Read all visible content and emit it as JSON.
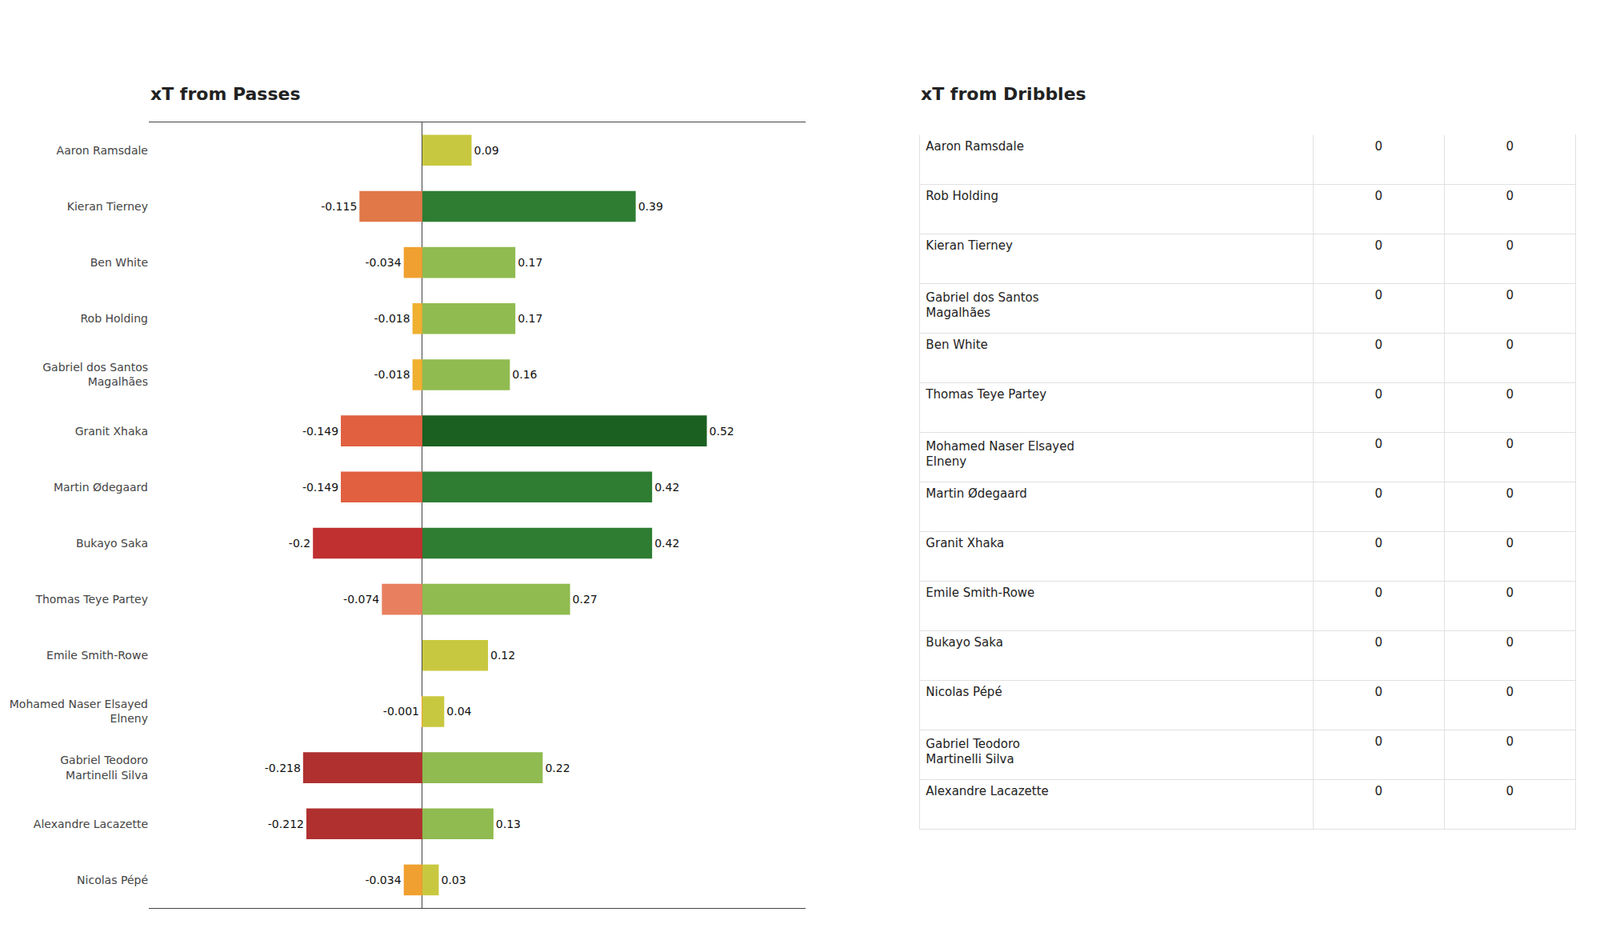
{
  "chart_data": [
    {
      "type": "bar",
      "orientation": "horizontal",
      "title": "xT from Passes",
      "categories": [
        "Aaron Ramsdale",
        "Kieran Tierney",
        "Ben White",
        "Rob Holding",
        "Gabriel dos Santos\nMagalhães",
        "Granit Xhaka",
        "Martin Ødegaard",
        "Bukayo Saka",
        "Thomas Teye Partey",
        "Emile Smith-Rowe",
        "Mohamed Naser Elsayed\nElneny",
        "Gabriel Teodoro\nMartinelli Silva",
        "Alexandre Lacazette",
        "Nicolas Pépé"
      ],
      "series": [
        {
          "values": [
            0,
            -0.115,
            -0.034,
            -0.018,
            -0.018,
            -0.149,
            -0.149,
            -0.2,
            -0.074,
            0,
            -0.001,
            -0.218,
            -0.212,
            -0.034
          ],
          "colors": [
            "#cccc55",
            "#E07848",
            "#F0A030",
            "#F0B030",
            "#F0B030",
            "#E06040",
            "#E06040",
            "#C03030",
            "#E88060",
            "#cccc55",
            "#F0A030",
            "#B03030",
            "#B03030",
            "#F0A030"
          ]
        },
        {
          "values": [
            0.09,
            0.39,
            0.17,
            0.17,
            0.16,
            0.52,
            0.42,
            0.42,
            0.27,
            0.12,
            0.04,
            0.22,
            0.13,
            0.03
          ],
          "colors": [
            "#C8C840",
            "#2E7D32",
            "#90BB50",
            "#90BB50",
            "#90BB50",
            "#1B6020",
            "#2E7D32",
            "#2E7D32",
            "#90BB50",
            "#C8C840",
            "#C8C840",
            "#90BB50",
            "#90BB50",
            "#C8C840"
          ]
        }
      ],
      "xlim": [
        -0.5,
        0.7
      ],
      "data_labels": true,
      "tick_labels": "y",
      "grid": false
    },
    {
      "type": "table",
      "title": "xT from Dribbles",
      "categories": [
        "Aaron Ramsdale",
        "Rob Holding",
        "Kieran Tierney",
        "Gabriel dos Santos\nMagalhães",
        "Ben White",
        "Thomas Teye Partey",
        "Mohamed Naser Elsayed\nElneny",
        "Martin Ødegaard",
        "Granit Xhaka",
        "Emile Smith-Rowe",
        "Bukayo Saka",
        "Nicolas Pépé",
        "Gabriel Teodoro\nMartinelli Silva",
        "Alexandre Lacazette"
      ],
      "series": [
        {
          "values": [
            0,
            0,
            0,
            0,
            0,
            0,
            0,
            0,
            0,
            0,
            0,
            0,
            0,
            0
          ]
        },
        {
          "values": [
            0,
            0,
            0,
            0,
            0,
            0,
            0,
            0,
            0,
            0,
            0,
            0,
            0,
            0
          ]
        }
      ]
    }
  ]
}
